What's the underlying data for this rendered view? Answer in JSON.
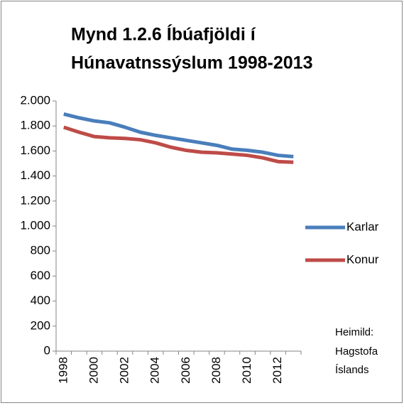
{
  "chart_data": {
    "type": "line",
    "title": [
      "Mynd 1.2.6 Íbúafjöldi í",
      "Húnavatnssýslum 1998-2013"
    ],
    "categories": [
      "1998",
      null,
      "2000",
      null,
      "2002",
      null,
      "2004",
      null,
      "2006",
      null,
      "2008",
      null,
      "2010",
      null,
      "2012",
      null
    ],
    "series": [
      {
        "name": "Karlar",
        "color": "#4a7ebb",
        "values": [
          1895,
          1865,
          1840,
          1825,
          1790,
          1750,
          1725,
          1705,
          1685,
          1665,
          1645,
          1615,
          1605,
          1590,
          1565,
          1555
        ]
      },
      {
        "name": "Konur",
        "color": "#be4b48",
        "values": [
          1790,
          1750,
          1715,
          1705,
          1700,
          1690,
          1665,
          1630,
          1605,
          1590,
          1585,
          1575,
          1565,
          1545,
          1515,
          1510
        ]
      }
    ],
    "ylim": [
      0,
      2000
    ],
    "yticks": [
      0,
      200,
      400,
      600,
      800,
      {
        "value": 1000,
        "label": "1.000"
      },
      {
        "value": 1200,
        "label": "1.200"
      },
      {
        "value": 1400,
        "label": "1.400"
      },
      {
        "value": 1600,
        "label": "1.600"
      },
      {
        "value": 1800,
        "label": "1.800"
      },
      {
        "value": 2000,
        "label": "2.000"
      }
    ],
    "grid": false,
    "legend": "right",
    "source": [
      "Heimild:",
      "Hagstofa",
      "Íslands"
    ]
  }
}
